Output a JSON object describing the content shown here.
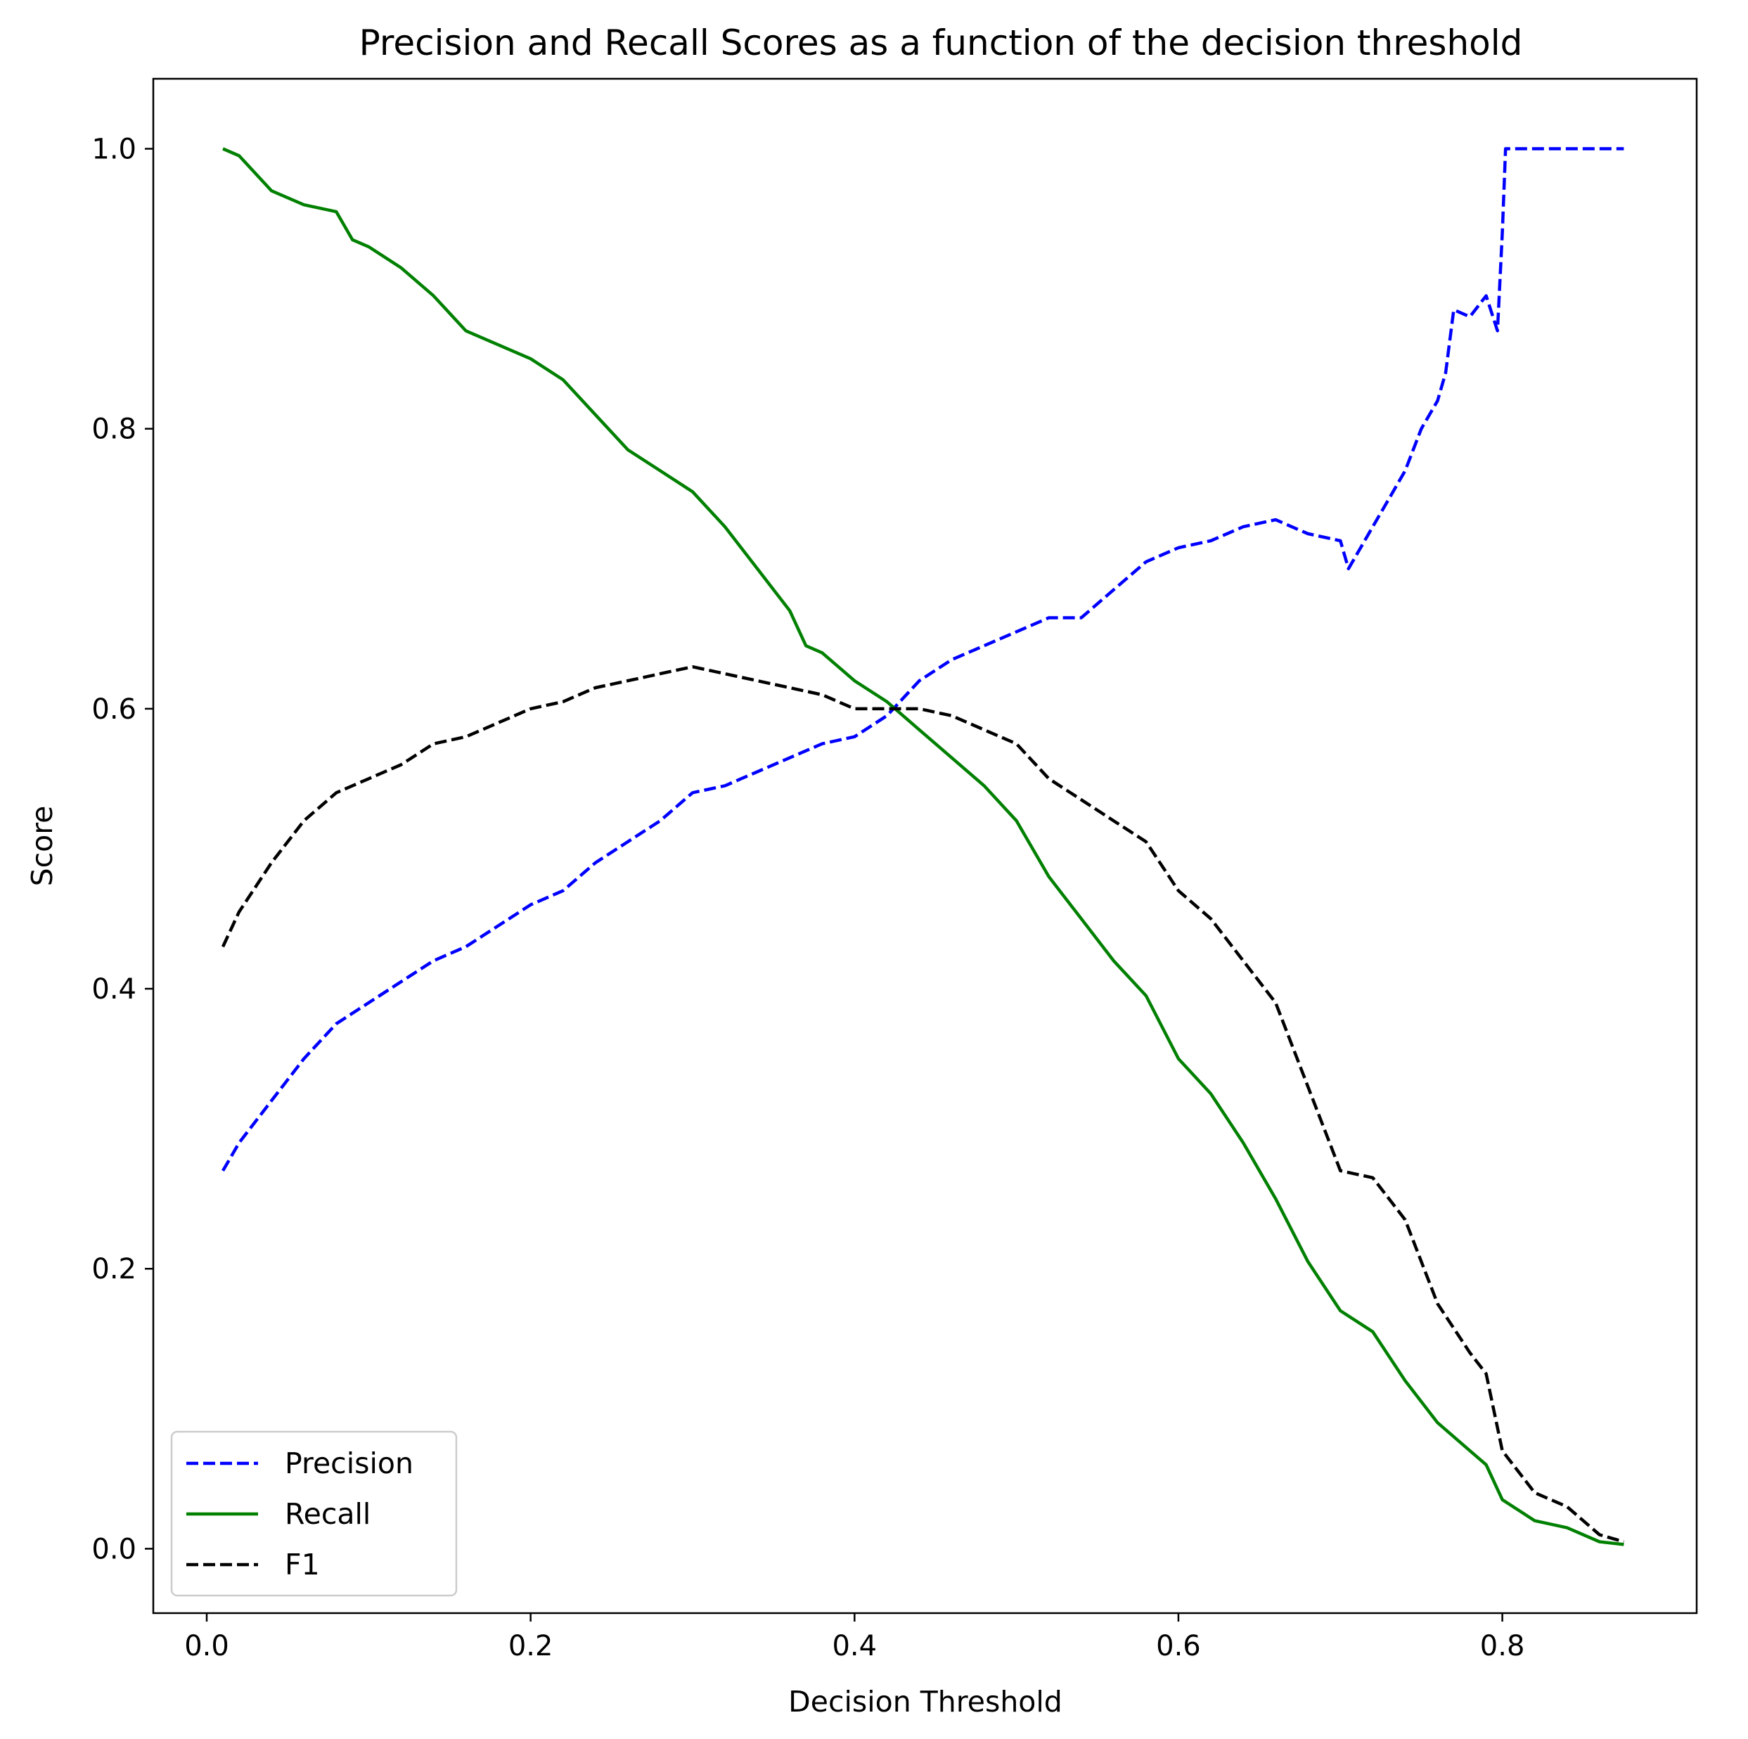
{
  "chart_data": {
    "type": "line",
    "title": "Precision and Recall Scores as a function of the decision threshold",
    "xlabel": "Decision Threshold",
    "ylabel": "Score",
    "xlim": [
      -0.033,
      0.92
    ],
    "ylim": [
      -0.046,
      1.05
    ],
    "xticks": [
      0.0,
      0.2,
      0.4,
      0.6,
      0.8
    ],
    "xtick_labels": [
      "0.0",
      "0.2",
      "0.4",
      "0.6",
      "0.8"
    ],
    "yticks": [
      0.0,
      0.2,
      0.4,
      0.6,
      0.8,
      1.0
    ],
    "ytick_labels": [
      "0.0",
      "0.2",
      "0.4",
      "0.6",
      "0.8",
      "1.0"
    ],
    "grid": false,
    "legend_position": "lower-left",
    "series": [
      {
        "name": "Precision",
        "color": "#0000ff",
        "style": "dashed",
        "x": [
          0.01,
          0.02,
          0.04,
          0.06,
          0.08,
          0.1,
          0.12,
          0.14,
          0.16,
          0.18,
          0.2,
          0.22,
          0.24,
          0.26,
          0.28,
          0.3,
          0.32,
          0.34,
          0.36,
          0.38,
          0.4,
          0.42,
          0.44,
          0.46,
          0.48,
          0.5,
          0.52,
          0.54,
          0.56,
          0.58,
          0.6,
          0.62,
          0.64,
          0.66,
          0.68,
          0.7,
          0.705,
          0.72,
          0.73,
          0.74,
          0.75,
          0.76,
          0.765,
          0.77,
          0.78,
          0.79,
          0.797,
          0.8,
          0.802,
          0.81,
          0.84,
          0.875
        ],
        "y": [
          0.27,
          0.29,
          0.32,
          0.35,
          0.375,
          0.39,
          0.405,
          0.42,
          0.43,
          0.445,
          0.46,
          0.47,
          0.49,
          0.505,
          0.52,
          0.54,
          0.545,
          0.555,
          0.565,
          0.575,
          0.58,
          0.595,
          0.62,
          0.635,
          0.645,
          0.655,
          0.665,
          0.665,
          0.685,
          0.705,
          0.715,
          0.72,
          0.73,
          0.735,
          0.725,
          0.72,
          0.7,
          0.73,
          0.75,
          0.77,
          0.8,
          0.82,
          0.84,
          0.885,
          0.88,
          0.895,
          0.87,
          0.94,
          1.0,
          1.0,
          1.0,
          1.0
        ]
      },
      {
        "name": "Recall",
        "color": "#008000",
        "style": "solid",
        "x": [
          0.01,
          0.02,
          0.04,
          0.06,
          0.08,
          0.09,
          0.1,
          0.12,
          0.14,
          0.16,
          0.18,
          0.2,
          0.22,
          0.24,
          0.26,
          0.28,
          0.3,
          0.32,
          0.34,
          0.36,
          0.37,
          0.38,
          0.4,
          0.42,
          0.44,
          0.46,
          0.48,
          0.5,
          0.52,
          0.54,
          0.56,
          0.58,
          0.6,
          0.62,
          0.64,
          0.66,
          0.68,
          0.7,
          0.72,
          0.74,
          0.76,
          0.78,
          0.79,
          0.8,
          0.82,
          0.84,
          0.86,
          0.875
        ],
        "y": [
          1.0,
          0.995,
          0.97,
          0.96,
          0.955,
          0.935,
          0.93,
          0.915,
          0.895,
          0.87,
          0.86,
          0.85,
          0.835,
          0.81,
          0.785,
          0.77,
          0.755,
          0.73,
          0.7,
          0.67,
          0.645,
          0.64,
          0.62,
          0.605,
          0.585,
          0.565,
          0.545,
          0.52,
          0.48,
          0.45,
          0.42,
          0.395,
          0.35,
          0.325,
          0.29,
          0.25,
          0.205,
          0.17,
          0.155,
          0.12,
          0.09,
          0.07,
          0.06,
          0.035,
          0.02,
          0.015,
          0.005,
          0.003
        ]
      },
      {
        "name": "F1",
        "color": "#000000",
        "style": "dashed",
        "x": [
          0.01,
          0.02,
          0.04,
          0.06,
          0.08,
          0.1,
          0.12,
          0.14,
          0.16,
          0.18,
          0.2,
          0.22,
          0.24,
          0.26,
          0.28,
          0.3,
          0.32,
          0.34,
          0.36,
          0.38,
          0.4,
          0.42,
          0.44,
          0.46,
          0.48,
          0.5,
          0.52,
          0.54,
          0.56,
          0.58,
          0.6,
          0.62,
          0.64,
          0.66,
          0.68,
          0.7,
          0.72,
          0.74,
          0.76,
          0.78,
          0.79,
          0.8,
          0.82,
          0.84,
          0.86,
          0.875
        ],
        "y": [
          0.43,
          0.455,
          0.49,
          0.52,
          0.54,
          0.55,
          0.56,
          0.575,
          0.58,
          0.59,
          0.6,
          0.605,
          0.615,
          0.62,
          0.625,
          0.63,
          0.625,
          0.62,
          0.615,
          0.61,
          0.6,
          0.6,
          0.6,
          0.595,
          0.585,
          0.575,
          0.55,
          0.535,
          0.52,
          0.505,
          0.47,
          0.45,
          0.42,
          0.39,
          0.33,
          0.27,
          0.265,
          0.235,
          0.175,
          0.14,
          0.125,
          0.07,
          0.04,
          0.03,
          0.01,
          0.005
        ]
      }
    ]
  }
}
